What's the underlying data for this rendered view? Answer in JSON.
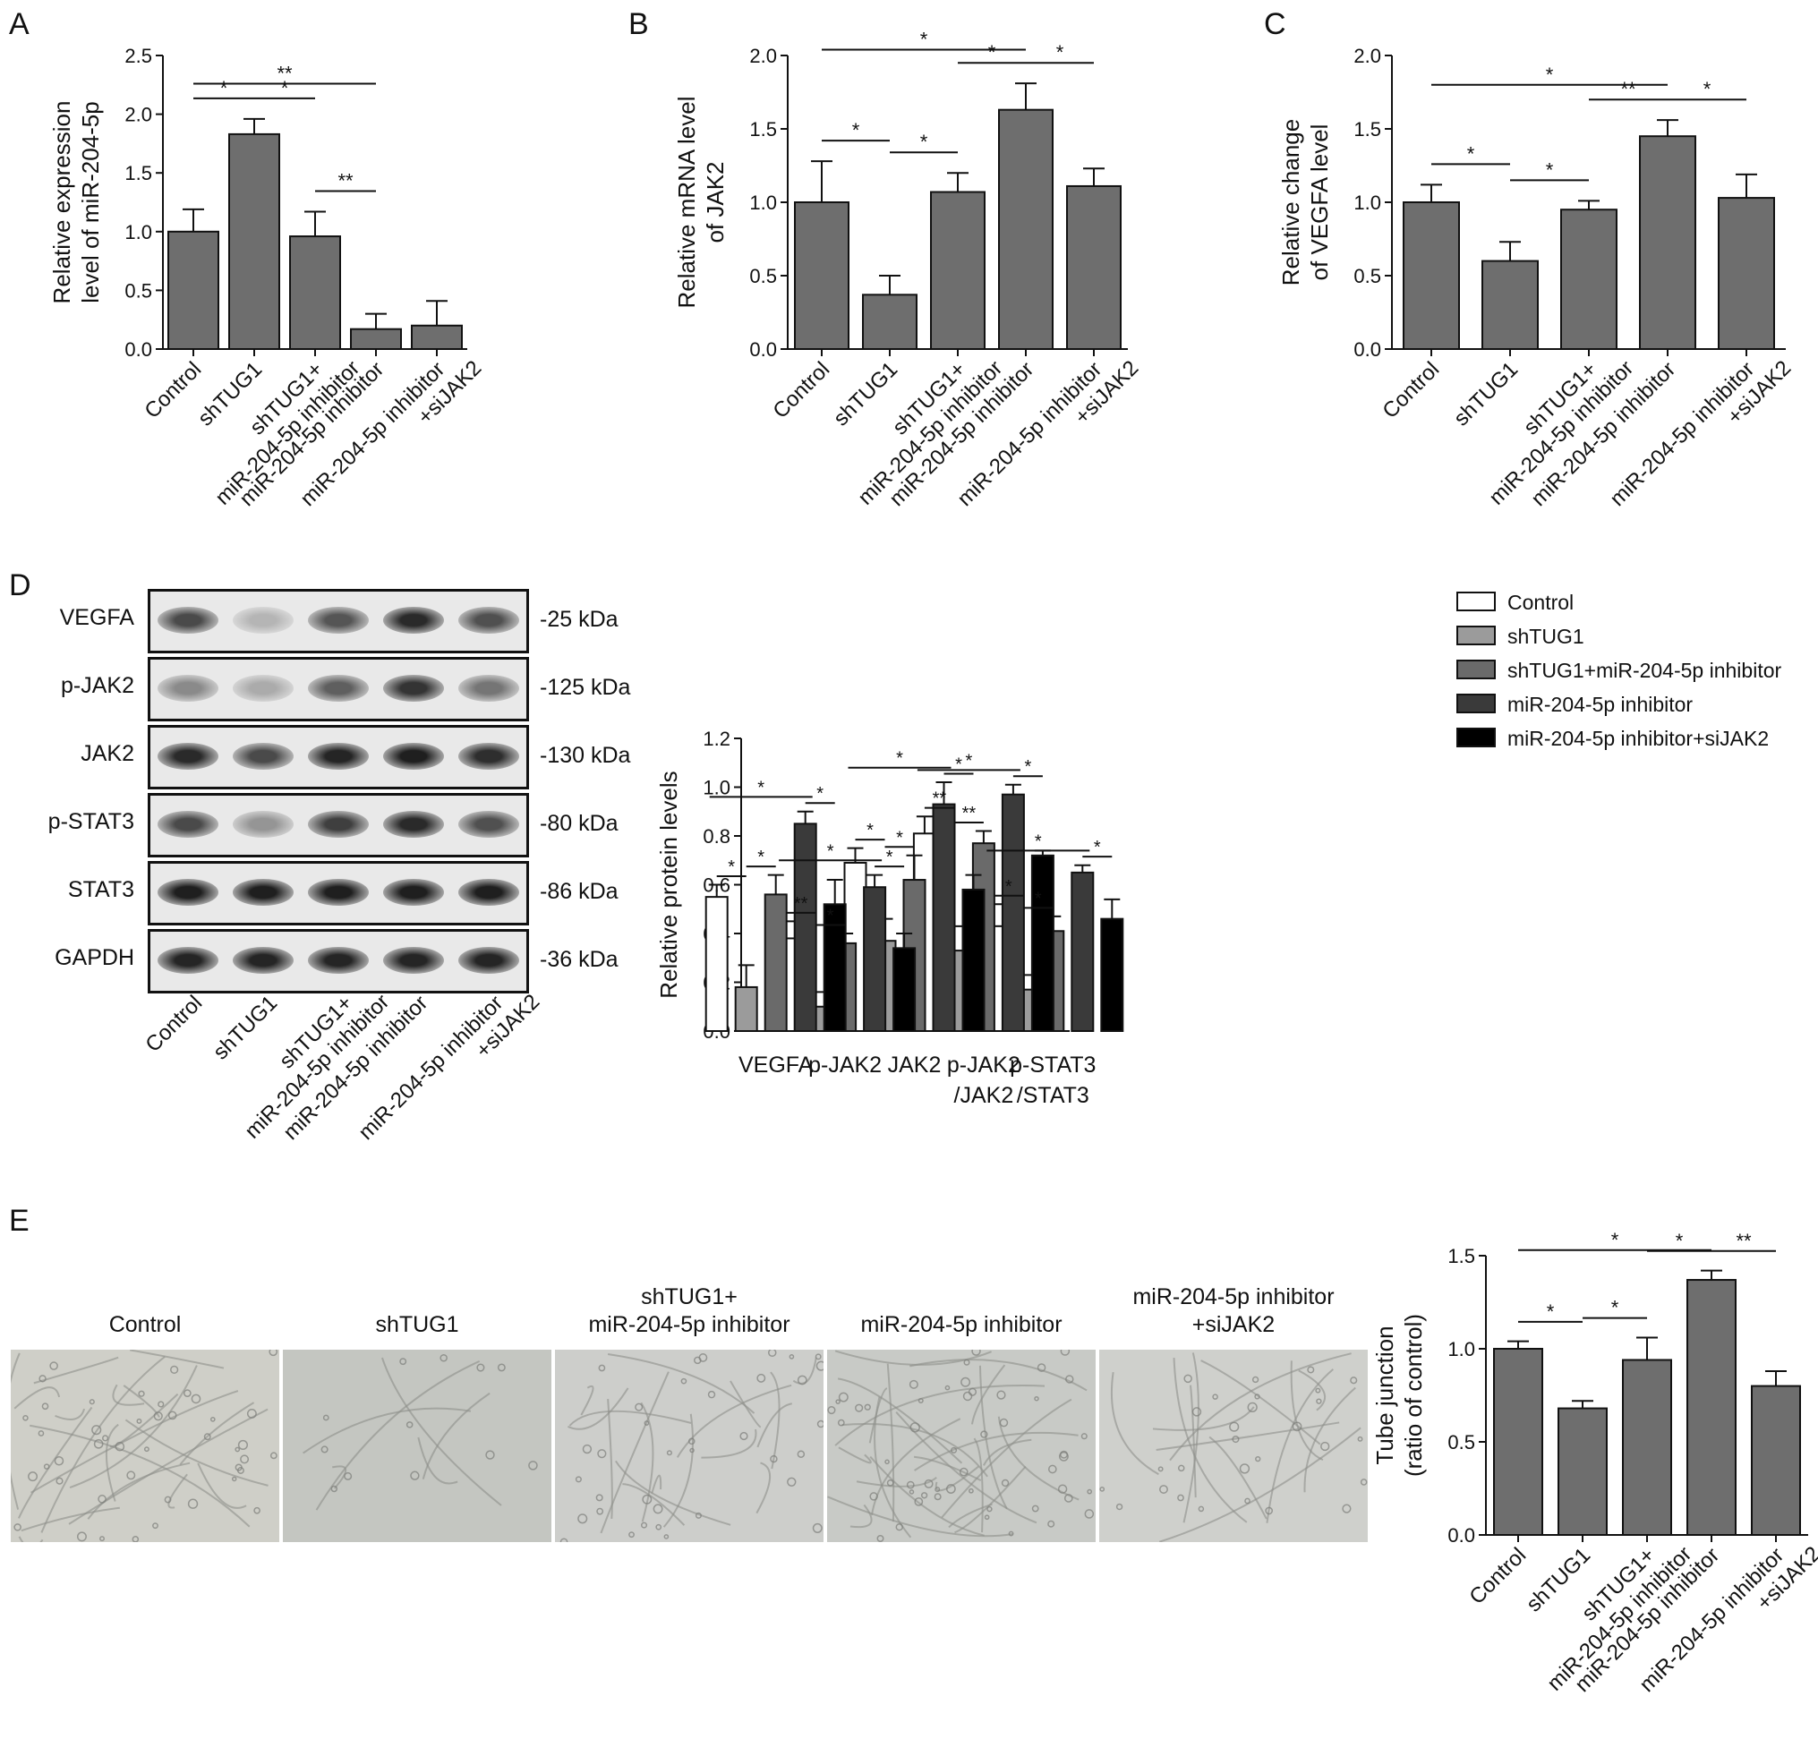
{
  "panel_letters": [
    "A",
    "B",
    "C",
    "D",
    "E"
  ],
  "colors": {
    "bar": "#6e6e6e",
    "control": "#ffffff",
    "shTUG1": "#9b9b9b",
    "shTUG1_inhibitor": "#6a6a6a",
    "inhibitor": "#3a3a3a",
    "inhibitor_siJAK2": "#000000"
  },
  "chart_data": [
    {
      "id": "A",
      "type": "bar",
      "categories": [
        "Control",
        "shTUG1",
        "shTUG1+\nmiR-204-5p inhibitor",
        "miR-204-5p inhibitor",
        "miR-204-5p inhibitor\n+siJAK2"
      ],
      "values": [
        1.0,
        1.83,
        0.96,
        0.17,
        0.2
      ],
      "errors": [
        0.19,
        0.13,
        0.21,
        0.13,
        0.21
      ],
      "ylabel": "Relative expression\nlevel of miR-204-5p",
      "ylim": [
        0,
        2.5
      ],
      "yticks": [
        "0.0",
        "0.5",
        "1.0",
        "1.5",
        "2.0",
        "2.5"
      ],
      "significance": [
        {
          "from": 0,
          "to": 1,
          "label": "*"
        },
        {
          "from": 1,
          "to": 2,
          "label": "*"
        },
        {
          "from": 0,
          "to": 3,
          "label": "**"
        },
        {
          "from": 2,
          "to": 3,
          "label": "**"
        }
      ]
    },
    {
      "id": "B",
      "type": "bar",
      "categories": [
        "Control",
        "shTUG1",
        "shTUG1+\nmiR-204-5p inhibitor",
        "miR-204-5p inhibitor",
        "miR-204-5p inhibitor\n+siJAK2"
      ],
      "values": [
        1.0,
        0.37,
        1.07,
        1.63,
        1.11
      ],
      "errors": [
        0.28,
        0.13,
        0.13,
        0.18,
        0.12
      ],
      "ylabel": "Relative mRNA level\nof JAK2",
      "ylim": [
        0,
        2.0
      ],
      "yticks": [
        "0.0",
        "0.5",
        "1.0",
        "1.5",
        "2.0"
      ],
      "significance": [
        {
          "from": 0,
          "to": 1,
          "label": "*"
        },
        {
          "from": 1,
          "to": 2,
          "label": "*"
        },
        {
          "from": 0,
          "to": 3,
          "label": "*"
        },
        {
          "from": 2,
          "to": 3,
          "label": "*"
        },
        {
          "from": 3,
          "to": 4,
          "label": "*"
        }
      ]
    },
    {
      "id": "C",
      "type": "bar",
      "categories": [
        "Control",
        "shTUG1",
        "shTUG1+\nmiR-204-5p inhibitor",
        "miR-204-5p inhibitor",
        "miR-204-5p inhibitor\n+siJAK2"
      ],
      "values": [
        1.0,
        0.6,
        0.95,
        1.45,
        1.03
      ],
      "errors": [
        0.12,
        0.13,
        0.06,
        0.11,
        0.16
      ],
      "ylabel": "Relative change\nof VEGFA level",
      "ylim": [
        0,
        2.0
      ],
      "yticks": [
        "0.0",
        "0.5",
        "1.0",
        "1.5",
        "2.0"
      ],
      "significance": [
        {
          "from": 0,
          "to": 1,
          "label": "*"
        },
        {
          "from": 1,
          "to": 2,
          "label": "*"
        },
        {
          "from": 0,
          "to": 3,
          "label": "*"
        },
        {
          "from": 2,
          "to": 3,
          "label": "**"
        },
        {
          "from": 3,
          "to": 4,
          "label": "*"
        }
      ]
    },
    {
      "id": "D",
      "type": "bar",
      "grouped": true,
      "groups": [
        "VEGFA",
        "p-JAK2",
        "JAK2",
        "p-JAK2\n/JAK2",
        "p-STAT3\n/STAT3"
      ],
      "series": [
        {
          "name": "Control",
          "values": [
            0.55,
            0.38,
            0.69,
            0.81,
            0.43
          ],
          "errors": [
            0.05,
            0.07,
            0.06,
            0.07,
            0.09
          ]
        },
        {
          "name": "shTUG1",
          "values": [
            0.18,
            0.1,
            0.37,
            0.33,
            0.17
          ],
          "errors": [
            0.09,
            0.06,
            0.09,
            0.1,
            0.06
          ]
        },
        {
          "name": "shTUG1+miR-204-5p inhibitor",
          "values": [
            0.56,
            0.36,
            0.62,
            0.77,
            0.41
          ],
          "errors": [
            0.08,
            0.04,
            0.1,
            0.05,
            0.06
          ]
        },
        {
          "name": "miR-204-5p inhibitor",
          "values": [
            0.85,
            0.59,
            0.93,
            0.97,
            0.65
          ],
          "errors": [
            0.05,
            0.05,
            0.09,
            0.04,
            0.03
          ]
        },
        {
          "name": "miR-204-5p inhibitor+siJAK2",
          "values": [
            0.52,
            0.34,
            0.58,
            0.72,
            0.46
          ],
          "errors": [
            0.1,
            0.06,
            0.06,
            0.02,
            0.08
          ]
        }
      ],
      "ylabel": "Relative protein levels",
      "ylim": [
        0,
        1.2
      ],
      "yticks": [
        "0.0",
        "0.2",
        "0.4",
        "0.6",
        "0.8",
        "1.0",
        "1.2"
      ],
      "significance": [
        {
          "group": 0,
          "from": 0,
          "to": 1,
          "label": "*"
        },
        {
          "group": 0,
          "from": 1,
          "to": 2,
          "label": "*"
        },
        {
          "group": 0,
          "from": 0,
          "to": 3,
          "label": "*"
        },
        {
          "group": 0,
          "from": 3,
          "to": 4,
          "label": "*"
        },
        {
          "group": 1,
          "from": 0,
          "to": 1,
          "label": "**"
        },
        {
          "group": 1,
          "from": 1,
          "to": 2,
          "label": "*"
        },
        {
          "group": 1,
          "from": 0,
          "to": 3,
          "label": "*"
        },
        {
          "group": 1,
          "from": 3,
          "to": 4,
          "label": "*"
        },
        {
          "group": 2,
          "from": 0,
          "to": 1,
          "label": "*"
        },
        {
          "group": 2,
          "from": 1,
          "to": 2,
          "label": "*"
        },
        {
          "group": 2,
          "from": 0,
          "to": 3,
          "label": "*"
        },
        {
          "group": 2,
          "from": 3,
          "to": 4,
          "label": "*"
        },
        {
          "group": 3,
          "from": 0,
          "to": 1,
          "label": "**"
        },
        {
          "group": 3,
          "from": 1,
          "to": 2,
          "label": "**"
        },
        {
          "group": 3,
          "from": 0,
          "to": 3,
          "label": "*"
        },
        {
          "group": 3,
          "from": 3,
          "to": 4,
          "label": "*"
        },
        {
          "group": 4,
          "from": 0,
          "to": 1,
          "label": "*"
        },
        {
          "group": 4,
          "from": 1,
          "to": 2,
          "label": "*"
        },
        {
          "group": 4,
          "from": 0,
          "to": 3,
          "label": "*"
        },
        {
          "group": 4,
          "from": 3,
          "to": 4,
          "label": "*"
        }
      ]
    },
    {
      "id": "E",
      "type": "bar",
      "categories": [
        "Control",
        "shTUG1",
        "shTUG1+\nmiR-204-5p inhibitor",
        "miR-204-5p inhibitor",
        "miR-204-5p inhibitor\n+siJAK2"
      ],
      "values": [
        1.0,
        0.68,
        0.94,
        1.37,
        0.8
      ],
      "errors": [
        0.04,
        0.04,
        0.12,
        0.05,
        0.08
      ],
      "ylabel": "Tube junction\n(ratio of control)",
      "ylim": [
        0,
        1.5
      ],
      "yticks": [
        "0.0",
        "0.5",
        "1.0",
        "1.5"
      ],
      "significance": [
        {
          "from": 0,
          "to": 1,
          "label": "*"
        },
        {
          "from": 1,
          "to": 2,
          "label": "*"
        },
        {
          "from": 0,
          "to": 3,
          "label": "*"
        },
        {
          "from": 2,
          "to": 3,
          "label": "*"
        },
        {
          "from": 3,
          "to": 4,
          "label": "**"
        }
      ]
    }
  ],
  "western_blot": {
    "rows": [
      {
        "protein": "VEGFA",
        "kda": "-25 kDa",
        "intensity": [
          0.75,
          0.25,
          0.7,
          0.9,
          0.72
        ]
      },
      {
        "protein": "p-JAK2",
        "kda": "-125 kDa",
        "intensity": [
          0.45,
          0.3,
          0.65,
          0.85,
          0.55
        ]
      },
      {
        "protein": "JAK2",
        "kda": "-130 kDa",
        "intensity": [
          0.9,
          0.75,
          0.92,
          0.95,
          0.88
        ]
      },
      {
        "protein": "p-STAT3",
        "kda": "-80 kDa",
        "intensity": [
          0.75,
          0.4,
          0.8,
          0.9,
          0.72
        ]
      },
      {
        "protein": "STAT3",
        "kda": "-86 kDa",
        "intensity": [
          0.95,
          0.95,
          0.95,
          0.95,
          0.95
        ]
      },
      {
        "protein": "GAPDH",
        "kda": "-36 kDa",
        "intensity": [
          0.92,
          0.92,
          0.92,
          0.92,
          0.92
        ]
      }
    ],
    "lanes": [
      "Control",
      "shTUG1",
      "shTUG1+\nmiR-204-5p inhibitor",
      "miR-204-5p inhibitor",
      "miR-204-5p inhibitor\n+siJAK2"
    ]
  },
  "tube_images": {
    "titles": [
      "Control",
      "shTUG1",
      "shTUG1+\nmiR-204-5p inhibitor",
      "miR-204-5p inhibitor",
      "miR-204-5p inhibitor\n+siJAK2"
    ]
  }
}
